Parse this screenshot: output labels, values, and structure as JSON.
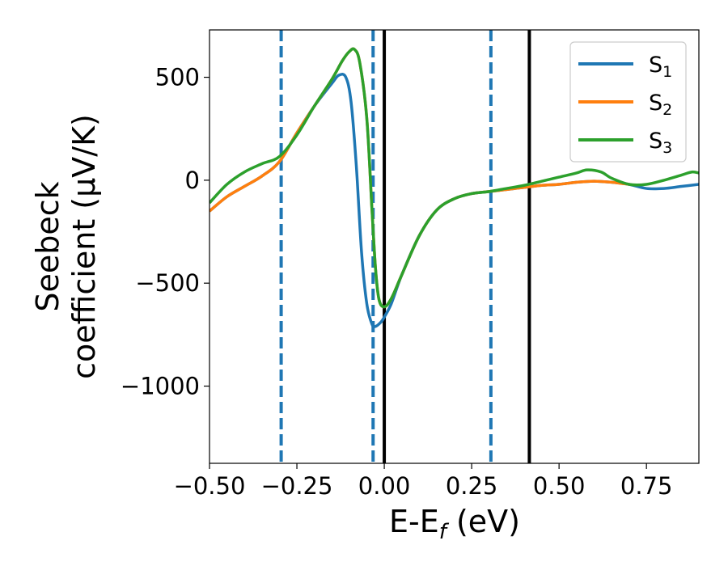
{
  "chart_data": {
    "type": "line",
    "xlabel": "E-E",
    "xlabel_sub": "f",
    "xlabel_unit": " (eV)",
    "ylabel_line1": "Seebeck",
    "ylabel_line2": "coefficient  (μV/K)",
    "xlim": [
      -0.5,
      0.9
    ],
    "ylim": [
      -1375,
      730
    ],
    "x_ticks": [
      -0.5,
      -0.25,
      0.0,
      0.25,
      0.5,
      0.75
    ],
    "x_tick_labels": [
      "−0.50",
      "−0.25",
      "0.00",
      "0.25",
      "0.50",
      "0.75"
    ],
    "y_ticks": [
      500,
      0,
      -500,
      -1000
    ],
    "y_tick_labels": [
      "500",
      "0",
      "−500",
      "−1000"
    ],
    "grid": false,
    "legend_position": "top-right",
    "vertical_lines": [
      {
        "x": -0.295,
        "style": "dashed",
        "color": "#1f77b4"
      },
      {
        "x": -0.032,
        "style": "dashed",
        "color": "#1f77b4"
      },
      {
        "x": 0.0,
        "style": "solid",
        "color": "#000000"
      },
      {
        "x": 0.305,
        "style": "dashed",
        "color": "#1f77b4"
      },
      {
        "x": 0.415,
        "style": "solid",
        "color": "#000000"
      }
    ],
    "series": [
      {
        "name": "S",
        "sub": "1",
        "color": "#1f77b4",
        "points": [
          [
            -0.5,
            -150
          ],
          [
            -0.45,
            -80
          ],
          [
            -0.4,
            -30
          ],
          [
            -0.35,
            20
          ],
          [
            -0.3,
            90
          ],
          [
            -0.25,
            230
          ],
          [
            -0.2,
            360
          ],
          [
            -0.15,
            470
          ],
          [
            -0.13,
            510
          ],
          [
            -0.11,
            500
          ],
          [
            -0.095,
            380
          ],
          [
            -0.08,
            70
          ],
          [
            -0.065,
            -350
          ],
          [
            -0.05,
            -600
          ],
          [
            -0.035,
            -700
          ],
          [
            -0.025,
            -710
          ],
          [
            -0.01,
            -690
          ],
          [
            0.0,
            -665
          ],
          [
            0.02,
            -600
          ],
          [
            0.05,
            -460
          ],
          [
            0.1,
            -270
          ],
          [
            0.15,
            -145
          ],
          [
            0.2,
            -90
          ],
          [
            0.25,
            -65
          ],
          [
            0.3,
            -55
          ],
          [
            0.35,
            -45
          ],
          [
            0.4,
            -35
          ],
          [
            0.45,
            -25
          ],
          [
            0.5,
            -20
          ],
          [
            0.55,
            -10
          ],
          [
            0.6,
            -5
          ],
          [
            0.65,
            -10
          ],
          [
            0.7,
            -20
          ],
          [
            0.75,
            -40
          ],
          [
            0.8,
            -40
          ],
          [
            0.85,
            -30
          ],
          [
            0.9,
            -20
          ]
        ]
      },
      {
        "name": "S",
        "sub": "2",
        "color": "#ff7f0e",
        "points": [
          [
            -0.5,
            -150
          ],
          [
            -0.45,
            -80
          ],
          [
            -0.4,
            -30
          ],
          [
            -0.35,
            20
          ],
          [
            -0.3,
            90
          ],
          [
            -0.25,
            230
          ],
          [
            -0.2,
            360
          ],
          [
            -0.15,
            490
          ],
          [
            -0.12,
            580
          ],
          [
            -0.1,
            625
          ],
          [
            -0.085,
            635
          ],
          [
            -0.07,
            570
          ],
          [
            -0.05,
            300
          ],
          [
            -0.035,
            -150
          ],
          [
            -0.025,
            -430
          ],
          [
            -0.015,
            -580
          ],
          [
            0.0,
            -615
          ],
          [
            0.02,
            -575
          ],
          [
            0.05,
            -460
          ],
          [
            0.1,
            -270
          ],
          [
            0.15,
            -145
          ],
          [
            0.2,
            -90
          ],
          [
            0.25,
            -65
          ],
          [
            0.3,
            -55
          ],
          [
            0.35,
            -45
          ],
          [
            0.4,
            -35
          ],
          [
            0.45,
            -25
          ],
          [
            0.5,
            -20
          ],
          [
            0.55,
            -10
          ],
          [
            0.6,
            -5
          ],
          [
            0.65,
            -10
          ],
          [
            0.7,
            -20
          ]
        ]
      },
      {
        "name": "S",
        "sub": "3",
        "color": "#2ca02c",
        "points": [
          [
            -0.5,
            -110
          ],
          [
            -0.45,
            -20
          ],
          [
            -0.4,
            40
          ],
          [
            -0.35,
            80
          ],
          [
            -0.3,
            115
          ],
          [
            -0.25,
            220
          ],
          [
            -0.2,
            360
          ],
          [
            -0.15,
            490
          ],
          [
            -0.12,
            580
          ],
          [
            -0.1,
            625
          ],
          [
            -0.085,
            635
          ],
          [
            -0.07,
            570
          ],
          [
            -0.05,
            300
          ],
          [
            -0.035,
            -150
          ],
          [
            -0.025,
            -430
          ],
          [
            -0.015,
            -580
          ],
          [
            0.0,
            -615
          ],
          [
            0.02,
            -575
          ],
          [
            0.05,
            -460
          ],
          [
            0.1,
            -270
          ],
          [
            0.15,
            -145
          ],
          [
            0.2,
            -90
          ],
          [
            0.25,
            -65
          ],
          [
            0.3,
            -55
          ],
          [
            0.35,
            -40
          ],
          [
            0.4,
            -25
          ],
          [
            0.45,
            -5
          ],
          [
            0.5,
            15
          ],
          [
            0.55,
            35
          ],
          [
            0.58,
            50
          ],
          [
            0.62,
            40
          ],
          [
            0.65,
            10
          ],
          [
            0.7,
            -20
          ],
          [
            0.75,
            -20
          ],
          [
            0.8,
            0
          ],
          [
            0.85,
            25
          ],
          [
            0.88,
            40
          ],
          [
            0.9,
            35
          ]
        ]
      }
    ]
  }
}
